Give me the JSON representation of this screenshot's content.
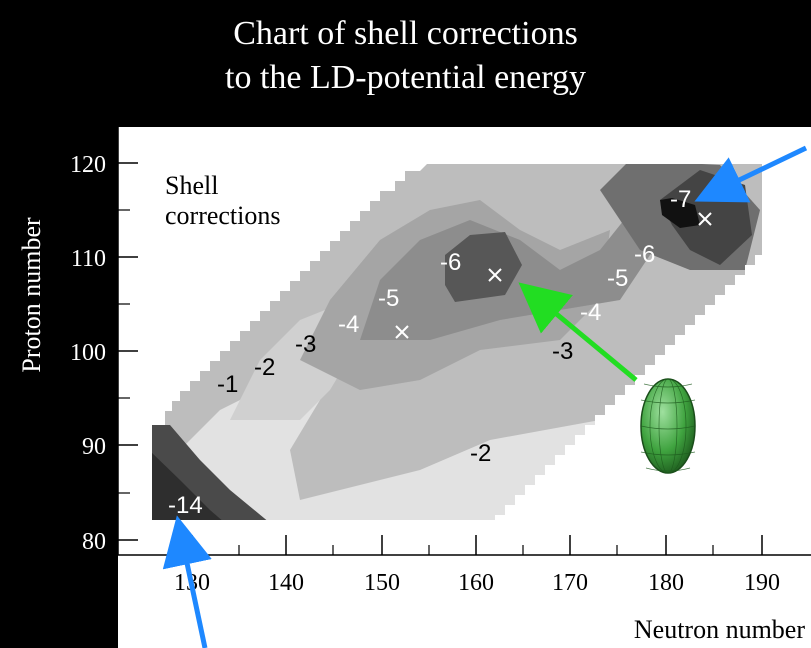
{
  "header": {
    "title_line1": "Chart of shell corrections",
    "title_line2": "to the LD-potential energy"
  },
  "chart_data": {
    "type": "heatmap",
    "xlabel": "Neutron  number",
    "ylabel": "Proton  number",
    "xlim": [
      125,
      192
    ],
    "ylim": [
      78,
      124
    ],
    "x_ticks": [
      130,
      140,
      150,
      160,
      170,
      180,
      190
    ],
    "y_ticks": [
      80,
      90,
      100,
      110,
      120
    ],
    "inset_label_line1": "Shell",
    "inset_label_line2": "corrections",
    "contour_labels": [
      {
        "text": "-14",
        "x": 128,
        "y": 83
      },
      {
        "text": "-1",
        "x": 133,
        "y": 97
      },
      {
        "text": "-2",
        "x": 137,
        "y": 98.5
      },
      {
        "text": "-3",
        "x": 141,
        "y": 100.5
      },
      {
        "text": "-4",
        "x": 146,
        "y": 102.5
      },
      {
        "text": "-5",
        "x": 150,
        "y": 105
      },
      {
        "text": "-6",
        "x": 159,
        "y": 109.5
      },
      {
        "text": "-3",
        "x": 166,
        "y": 100
      },
      {
        "text": "-4",
        "x": 172,
        "y": 103
      },
      {
        "text": "-5",
        "x": 176,
        "y": 107
      },
      {
        "text": "-6",
        "x": 179,
        "y": 110
      },
      {
        "text": "-7",
        "x": 183,
        "y": 115
      },
      {
        "text": "-2",
        "x": 162,
        "y": 89
      }
    ],
    "minima_markers": [
      {
        "x": 152,
        "y": 102
      },
      {
        "x": 161,
        "y": 108
      },
      {
        "x": 184,
        "y": 114
      }
    ],
    "colors": {
      "background": "#000000",
      "plot_frame": "#ffffff",
      "shade_1": "#e0e0e0",
      "shade_2": "#cfcfcf",
      "shade_3": "#b7b7b7",
      "shade_4": "#9d9d9d",
      "shade_5": "#828282",
      "shade_6": "#5f5f5f",
      "shade_7": "#3c3c3c",
      "arrow_blue": "#1e88ff",
      "arrow_green": "#22dd22",
      "ellipsoid": "#3fa33f"
    }
  }
}
